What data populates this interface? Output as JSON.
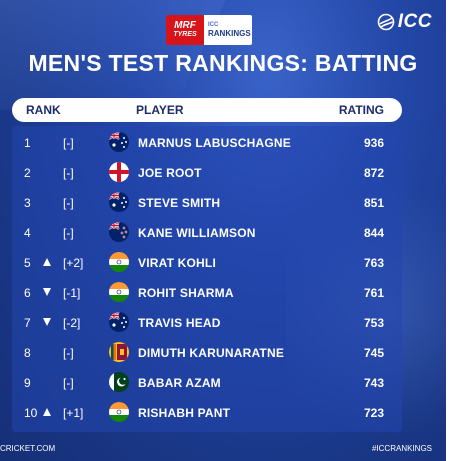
{
  "sponsor": {
    "mrf_line1": "MRF",
    "mrf_line2": "TYRES",
    "icc_small": "ICC",
    "icc_rankings": "RANKINGS"
  },
  "logo": {
    "text": "ICC"
  },
  "title": "MEN'S TEST RANKINGS: BATTING",
  "headers": {
    "rank": "RANK",
    "player": "PLAYER",
    "rating": "RATING"
  },
  "rows": [
    {
      "rank": "1",
      "movement": "[-]",
      "direction": "none",
      "country": "australia",
      "player": "MARNUS LABUSCHAGNE",
      "rating": "936"
    },
    {
      "rank": "2",
      "movement": "[-]",
      "direction": "none",
      "country": "england",
      "player": "JOE ROOT",
      "rating": "872"
    },
    {
      "rank": "3",
      "movement": "[-]",
      "direction": "none",
      "country": "australia",
      "player": "STEVE SMITH",
      "rating": "851"
    },
    {
      "rank": "4",
      "movement": "[-]",
      "direction": "none",
      "country": "new-zealand",
      "player": "KANE WILLIAMSON",
      "rating": "844"
    },
    {
      "rank": "5",
      "movement": "[+2]",
      "direction": "up",
      "country": "india",
      "player": "VIRAT KOHLI",
      "rating": "763"
    },
    {
      "rank": "6",
      "movement": "[-1]",
      "direction": "down",
      "country": "india",
      "player": "ROHIT SHARMA",
      "rating": "761"
    },
    {
      "rank": "7",
      "movement": "[-2]",
      "direction": "down",
      "country": "australia",
      "player": "TRAVIS HEAD",
      "rating": "753"
    },
    {
      "rank": "8",
      "movement": "[-]",
      "direction": "none",
      "country": "sri-lanka",
      "player": "DIMUTH KARUNARATNE",
      "rating": "745"
    },
    {
      "rank": "9",
      "movement": "[-]",
      "direction": "none",
      "country": "pakistan",
      "player": "BABAR AZAM",
      "rating": "743"
    },
    {
      "rank": "10",
      "movement": "[+1]",
      "direction": "up",
      "country": "india",
      "player": "RISHABH PANT",
      "rating": "723"
    }
  ],
  "footer": {
    "left": "CRICKET.COM",
    "right": "#ICCRANKINGS"
  },
  "colors": {
    "background": "#1f40a0",
    "header_text": "#1d2c6b",
    "accent_red": "#d7141a"
  }
}
